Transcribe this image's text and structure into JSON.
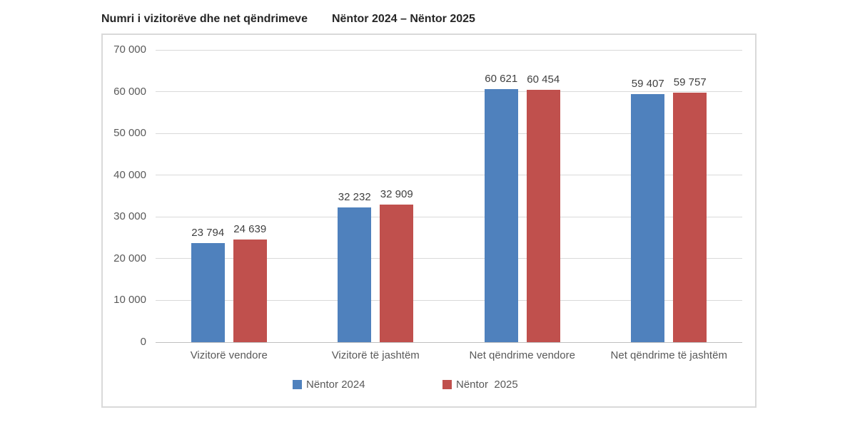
{
  "title": {
    "main": "Numri i vizitorëve dhe net qëndrimeve",
    "period": "Nëntor 2024 – Nëntor 2025"
  },
  "chart_data": {
    "type": "bar",
    "categories": [
      "Vizitorë vendore",
      "Vizitorë të jashtëm",
      "Net qëndrime vendore",
      "Net qëndrime të jashtëm"
    ],
    "series": [
      {
        "name": "Nëntor 2024",
        "color": "#4F81BD",
        "values": [
          23794,
          32232,
          60621,
          59407
        ]
      },
      {
        "name": "Nëntor  2025",
        "color": "#C0504D",
        "values": [
          24639,
          32909,
          60454,
          59757
        ]
      }
    ],
    "data_labels": [
      [
        "23 794",
        "32 232",
        "60 621",
        "59 407"
      ],
      [
        "24 639",
        "32 909",
        "60 454",
        "59 757"
      ]
    ],
    "ylim": [
      0,
      70000
    ],
    "ytick_step": 10000,
    "ytick_labels": [
      "0",
      "10 000",
      "20 000",
      "30 000",
      "40 000",
      "50 000",
      "60 000",
      "70 000"
    ],
    "grid": true,
    "legend_position": "bottom",
    "xlabel": "",
    "ylabel": ""
  },
  "colors": {
    "bar_blue": "#4F81BD",
    "bar_red": "#C0504D",
    "gridline": "#D9D9D9",
    "axis_line": "#BFBFBF",
    "frame_border": "#D9D9D9",
    "title_text": "#262626",
    "data_label_text": "#404040",
    "axis_text": "#595959",
    "background": "#FFFFFF"
  }
}
